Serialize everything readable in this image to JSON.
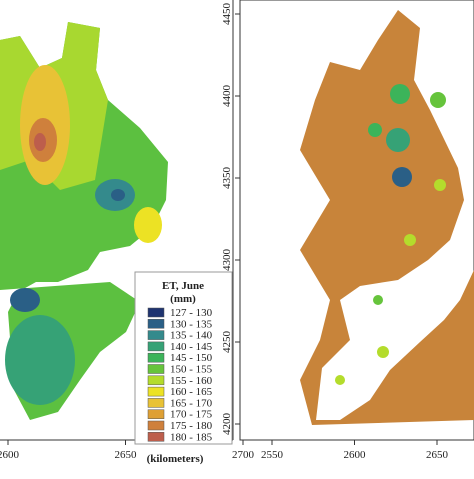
{
  "left_panel": {
    "x_ticks": [
      2600,
      2650,
      2700
    ],
    "x_label": "(kilometers)",
    "legend": {
      "title": "ET, June",
      "unit": "(mm)",
      "items": [
        {
          "label": "127 - 130",
          "color": "#1f3470"
        },
        {
          "label": "130 - 135",
          "color": "#2a5f86"
        },
        {
          "label": "135 - 140",
          "color": "#348a8c"
        },
        {
          "label": "140 - 145",
          "color": "#36a276"
        },
        {
          "label": "145 - 150",
          "color": "#3cb45a"
        },
        {
          "label": "150 - 155",
          "color": "#66c43c"
        },
        {
          "label": "155 - 160",
          "color": "#b4dc2c"
        },
        {
          "label": "160 - 165",
          "color": "#ece224"
        },
        {
          "label": "165 - 170",
          "color": "#e8c236"
        },
        {
          "label": "170 - 175",
          "color": "#dea034"
        },
        {
          "label": "175 - 180",
          "color": "#cf803c"
        },
        {
          "label": "180 - 185",
          "color": "#bd5e4c"
        }
      ]
    }
  },
  "right_panel": {
    "x_ticks": [
      2550,
      2600,
      2650
    ],
    "y_ticks": [
      4450,
      4400,
      4350,
      4300,
      4250,
      4200
    ]
  }
}
